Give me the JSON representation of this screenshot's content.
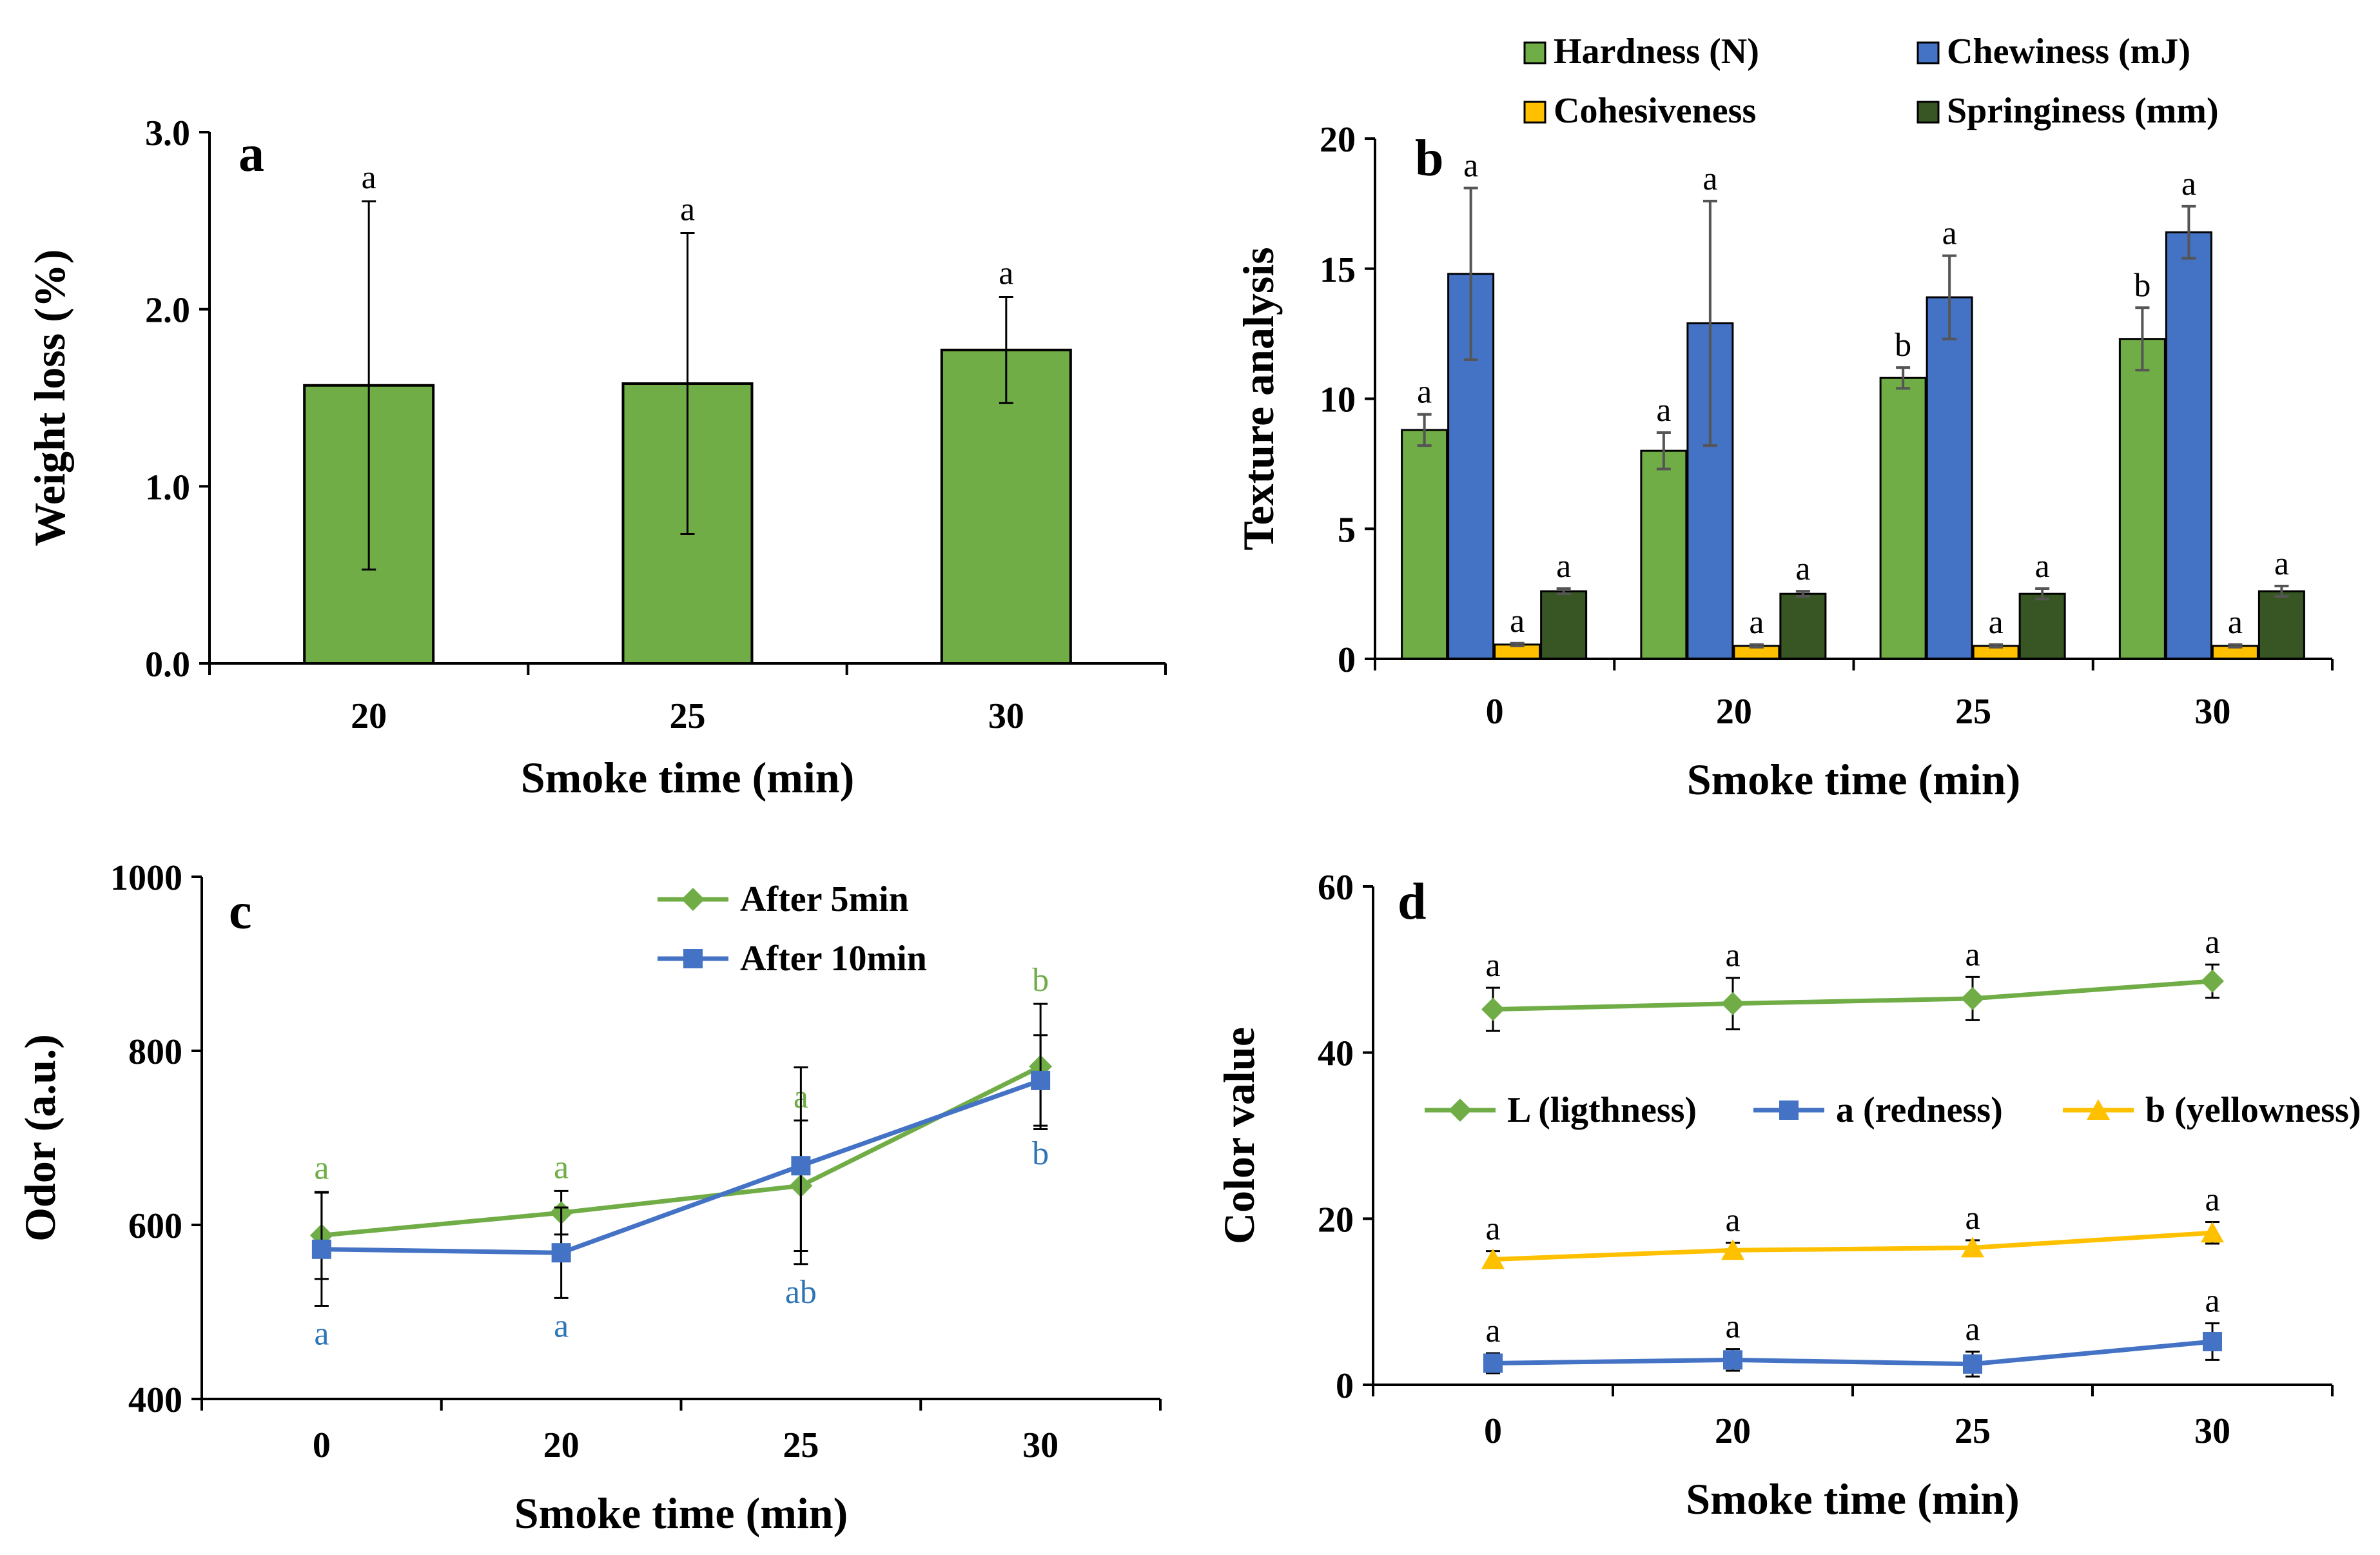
{
  "colors": {
    "green": "#70ad47",
    "blue": "#4472c4",
    "yellow": "#ffc000",
    "dark_green": "#375623",
    "sig_green": "#70ad47",
    "sig_blue": "#2e75b6"
  },
  "chart_data": [
    {
      "panel": "a",
      "type": "bar",
      "categories": [
        "20",
        "25",
        "30"
      ],
      "values": [
        1.57,
        1.58,
        1.77
      ],
      "errors": [
        1.04,
        0.85,
        0.3
      ],
      "significance": [
        "a",
        "a",
        "a"
      ],
      "xlabel": "Smoke time (min)",
      "ylabel": "Weight loss (%)",
      "ylim": [
        0,
        3
      ],
      "yticks": [
        "0.0",
        "1.0",
        "2.0",
        "3.0"
      ]
    },
    {
      "panel": "b",
      "type": "bar",
      "categories": [
        "0",
        "20",
        "25",
        "30"
      ],
      "series": [
        {
          "name": "Hardness (N)",
          "values": [
            8.8,
            8.0,
            10.8,
            12.3
          ],
          "errors": [
            0.6,
            0.7,
            0.4,
            1.2
          ],
          "significance": [
            "a",
            "a",
            "b",
            "b"
          ]
        },
        {
          "name": "Chewiness (mJ)",
          "values": [
            14.8,
            12.9,
            13.9,
            16.4
          ],
          "errors": [
            3.3,
            4.7,
            1.6,
            1.0
          ],
          "significance": [
            "a",
            "a",
            "a",
            "a"
          ]
        },
        {
          "name": "Cohesiveness",
          "values": [
            0.55,
            0.5,
            0.5,
            0.5
          ],
          "errors": [
            0.05,
            0.05,
            0.05,
            0.05
          ],
          "significance": [
            "a",
            "a",
            "a",
            "a"
          ]
        },
        {
          "name": "Springiness (mm)",
          "values": [
            2.6,
            2.5,
            2.5,
            2.6
          ],
          "errors": [
            0.1,
            0.1,
            0.2,
            0.2
          ],
          "significance": [
            "a",
            "a",
            "a",
            "a"
          ]
        }
      ],
      "xlabel": "Smoke time (min)",
      "ylabel": "Texture analysis",
      "ylim": [
        0,
        20
      ],
      "yticks": [
        "0",
        "5",
        "10",
        "15",
        "20"
      ]
    },
    {
      "panel": "c",
      "type": "line",
      "categories": [
        "0",
        "20",
        "25",
        "30"
      ],
      "series": [
        {
          "name": "After 5min",
          "values": [
            588,
            614,
            645,
            782
          ],
          "errors": [
            50,
            25,
            75,
            72
          ],
          "significance": [
            "a",
            "a",
            "a",
            "b"
          ],
          "marker": "diamond"
        },
        {
          "name": "After 10min",
          "values": [
            572,
            568,
            668,
            766
          ],
          "errors": [
            65,
            52,
            113,
            52
          ],
          "significance": [
            "a",
            "a",
            "ab",
            "b"
          ],
          "marker": "square"
        }
      ],
      "xlabel": "Smoke time (min)",
      "ylabel": "Odor (a.u.)",
      "ylim": [
        400,
        1000
      ],
      "yticks": [
        "400",
        "600",
        "800",
        "1000"
      ]
    },
    {
      "panel": "d",
      "type": "line",
      "categories": [
        "0",
        "20",
        "25",
        "30"
      ],
      "series": [
        {
          "name": "L (ligthness)",
          "values": [
            45.2,
            45.9,
            46.5,
            48.6
          ],
          "errors": [
            2.6,
            3.1,
            2.6,
            2.0
          ],
          "significance": [
            "a",
            "a",
            "a",
            "a"
          ],
          "marker": "diamond"
        },
        {
          "name": "a (redness)",
          "values": [
            2.6,
            3.0,
            2.5,
            5.2
          ],
          "errors": [
            1.2,
            1.3,
            1.5,
            2.2
          ],
          "significance": [
            "a",
            "a",
            "a",
            "a"
          ],
          "marker": "square"
        },
        {
          "name": "b (yellowness)",
          "values": [
            15.1,
            16.2,
            16.5,
            18.3
          ],
          "errors": [
            1.0,
            0.9,
            0.9,
            1.3
          ],
          "significance": [
            "a",
            "a",
            "a",
            "a"
          ],
          "marker": "triangle"
        }
      ],
      "xlabel": "Smoke time (min)",
      "ylabel": "Color value",
      "ylim": [
        0,
        60
      ],
      "yticks": [
        "0",
        "20",
        "40",
        "60"
      ]
    }
  ]
}
